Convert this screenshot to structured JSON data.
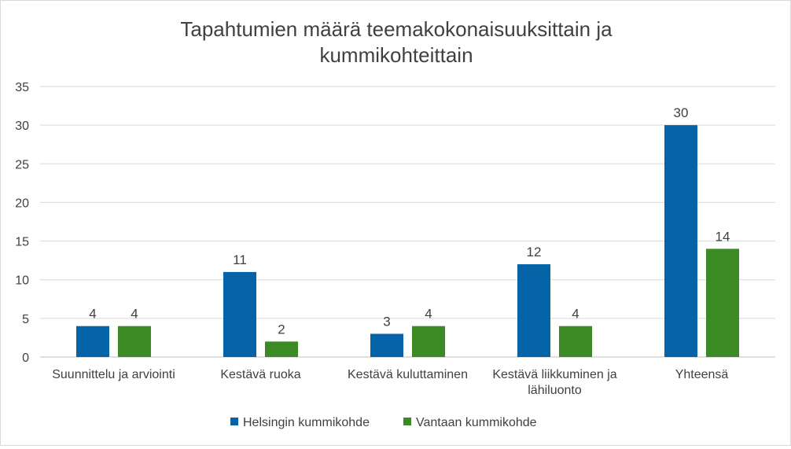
{
  "chart_data": {
    "type": "bar",
    "title_lines": [
      "Tapahtumien määrä teemakokonaisuuksittain ja",
      "kummikohteittain"
    ],
    "categories": [
      [
        "Suunnittelu ja arviointi"
      ],
      [
        "Kestävä ruoka"
      ],
      [
        "Kestävä kuluttaminen"
      ],
      [
        "Kestävä liikkuminen ja",
        "lähiluonto"
      ],
      [
        "Yhteensä"
      ]
    ],
    "series": [
      {
        "name": "Helsingin kummikohde",
        "color": "#0563a8",
        "values": [
          4,
          11,
          3,
          12,
          30
        ]
      },
      {
        "name": "Vantaan kummikohde",
        "color": "#3b8a24",
        "values": [
          4,
          2,
          4,
          4,
          14
        ]
      }
    ],
    "ylim": [
      0,
      35
    ],
    "yticks": [
      0,
      5,
      10,
      15,
      20,
      25,
      30,
      35
    ],
    "grid": true,
    "legend_position": "bottom",
    "data_labels": true
  }
}
